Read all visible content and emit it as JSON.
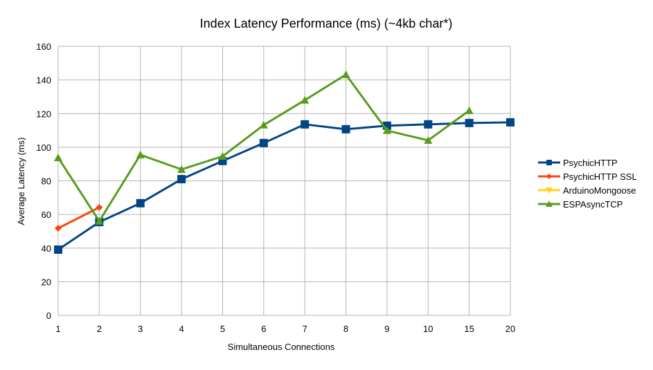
{
  "chart_data": {
    "type": "line",
    "title": "Index Latency Performance (ms) (~4kb char*)",
    "xlabel": "Simultaneous Connections",
    "ylabel": "Average Latency (ms)",
    "categories": [
      "1",
      "2",
      "3",
      "4",
      "5",
      "6",
      "7",
      "8",
      "9",
      "10",
      "15",
      "20"
    ],
    "ylim": [
      0,
      160
    ],
    "yticks": [
      0,
      20,
      40,
      60,
      80,
      100,
      120,
      140,
      160
    ],
    "grid": true,
    "legend": "right",
    "series": [
      {
        "name": "PsychicHTTP",
        "color": "#004586",
        "marker": "square",
        "values": [
          39.1,
          55.5,
          66.7,
          81,
          91.8,
          102.5,
          113.6,
          110.7,
          112.8,
          113.6,
          114.4,
          114.8
        ]
      },
      {
        "name": "PsychicHTTP SSL",
        "color": "#ff420e",
        "marker": "diamond",
        "values": [
          51.8,
          64.2,
          null,
          null,
          null,
          null,
          null,
          null,
          null,
          null,
          null,
          null
        ]
      },
      {
        "name": "ArduinoMongoose",
        "color": "#ffd320",
        "marker": "triangle-down",
        "values": [
          null,
          null,
          null,
          null,
          null,
          null,
          null,
          null,
          null,
          null,
          null,
          null
        ]
      },
      {
        "name": "ESPAsyncTCP",
        "color": "#579d1c",
        "marker": "triangle-up",
        "values": [
          93.8,
          56,
          95.5,
          86.8,
          94.6,
          113.2,
          128,
          143.2,
          109.9,
          104.1,
          121.8,
          null
        ]
      }
    ]
  }
}
